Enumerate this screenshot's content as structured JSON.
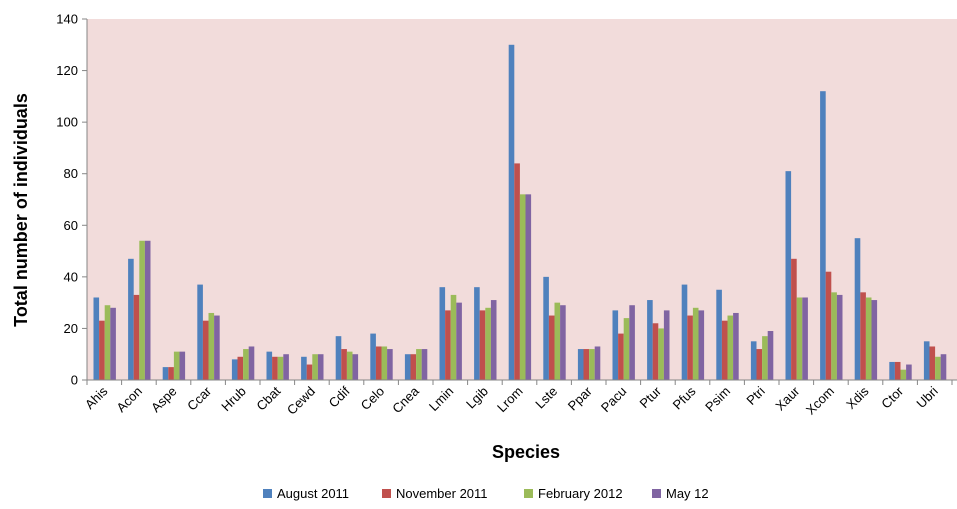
{
  "chart_data": {
    "type": "bar",
    "title": "",
    "xlabel": "Species",
    "ylabel": "Total number of individuals",
    "ylim": [
      0,
      140
    ],
    "yticks": [
      0,
      20,
      40,
      60,
      80,
      100,
      120,
      140
    ],
    "grid": false,
    "legend_position": "bottom",
    "plot_background": "#f2dcdb",
    "categories": [
      "Ahis",
      "Acon",
      "Aspe",
      "Ccar",
      "Hrub",
      "Cbat",
      "Cewd",
      "Cdif",
      "Celo",
      "Cnea",
      "Lmin",
      "Lgib",
      "Lrom",
      "Lste",
      "Ppar",
      "Pacu",
      "Ptur",
      "Pfus",
      "Psim",
      "Ptri",
      "Xaur",
      "Xcom",
      "Xdis",
      "Ctor",
      "Ubri"
    ],
    "series": [
      {
        "name": "August 2011",
        "color": "#4f81bd",
        "values": [
          32,
          47,
          5,
          37,
          8,
          11,
          9,
          17,
          18,
          10,
          36,
          36,
          130,
          40,
          12,
          27,
          31,
          37,
          35,
          15,
          81,
          112,
          55,
          7,
          15
        ]
      },
      {
        "name": "November 2011",
        "color": "#c0504d",
        "values": [
          23,
          33,
          5,
          23,
          9,
          9,
          6,
          12,
          13,
          10,
          27,
          27,
          84,
          25,
          12,
          18,
          22,
          25,
          23,
          12,
          47,
          42,
          34,
          7,
          13
        ]
      },
      {
        "name": "February 2012",
        "color": "#9bbb59",
        "values": [
          29,
          54,
          11,
          26,
          12,
          9,
          10,
          11,
          13,
          12,
          33,
          28,
          72,
          30,
          12,
          24,
          20,
          28,
          25,
          17,
          32,
          34,
          32,
          4,
          9
        ]
      },
      {
        "name": "May 12",
        "color": "#8064a2",
        "values": [
          28,
          54,
          11,
          25,
          13,
          10,
          10,
          10,
          12,
          12,
          30,
          31,
          72,
          29,
          13,
          29,
          27,
          27,
          26,
          19,
          32,
          33,
          31,
          6,
          10
        ]
      }
    ]
  }
}
